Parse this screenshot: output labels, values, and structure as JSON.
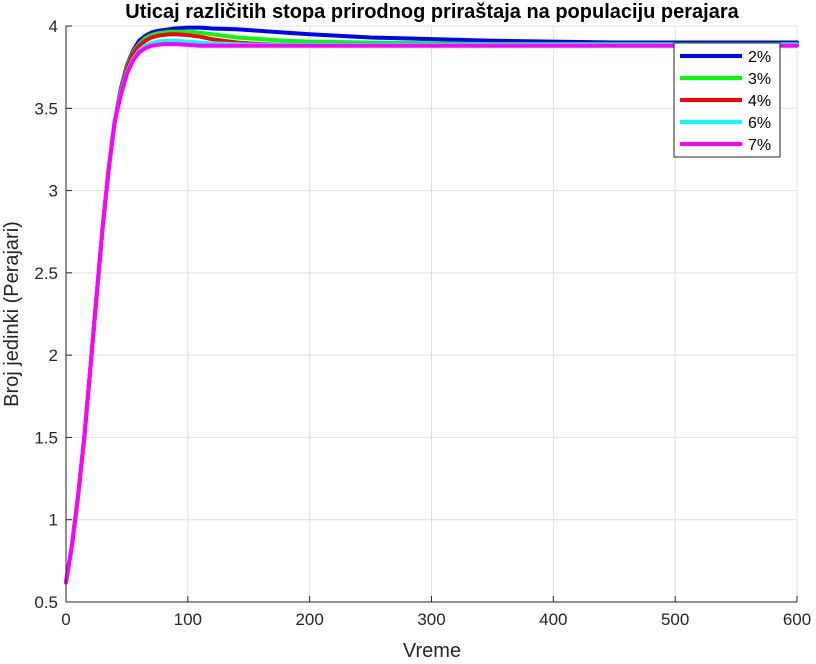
{
  "chart_data": {
    "type": "line",
    "title": "Uticaj različitih stopa prirodnog priraštaja na populaciju perajara",
    "xlabel": "Vreme",
    "ylabel": "Broj jedinki (Perajari)",
    "xlim": [
      0,
      600
    ],
    "ylim": [
      0.5,
      4
    ],
    "xticks": [
      0,
      100,
      200,
      300,
      400,
      500,
      600
    ],
    "xtick_labels": [
      "0",
      "100",
      "200",
      "300",
      "400",
      "500",
      "600"
    ],
    "yticks": [
      0.5,
      1,
      1.5,
      2,
      2.5,
      3,
      3.5,
      4
    ],
    "ytick_labels": [
      "0.5",
      "1",
      "1.5",
      "2",
      "2.5",
      "3",
      "3.5",
      "4"
    ],
    "grid": true,
    "legend_position": "top-right",
    "series": [
      {
        "name": "2%",
        "color": "#0000ff",
        "x": [
          0,
          5,
          10,
          15,
          20,
          25,
          30,
          35,
          40,
          45,
          50,
          55,
          60,
          65,
          70,
          75,
          80,
          85,
          90,
          100,
          110,
          120,
          140,
          160,
          180,
          200,
          250,
          300,
          350,
          400,
          450,
          500,
          550,
          600
        ],
        "y": [
          0.62,
          0.85,
          1.15,
          1.5,
          1.92,
          2.35,
          2.77,
          3.13,
          3.42,
          3.62,
          3.76,
          3.85,
          3.91,
          3.94,
          3.96,
          3.97,
          3.975,
          3.98,
          3.985,
          3.99,
          3.99,
          3.985,
          3.98,
          3.97,
          3.96,
          3.95,
          3.93,
          3.92,
          3.91,
          3.905,
          3.9,
          3.9,
          3.9,
          3.9
        ]
      },
      {
        "name": "3%",
        "color": "#00ff00",
        "x": [
          0,
          5,
          10,
          15,
          20,
          25,
          30,
          35,
          40,
          45,
          50,
          55,
          60,
          65,
          70,
          75,
          80,
          85,
          90,
          100,
          110,
          120,
          140,
          160,
          180,
          200,
          250,
          300,
          350,
          400,
          450,
          500,
          550,
          600
        ],
        "y": [
          0.62,
          0.85,
          1.15,
          1.5,
          1.92,
          2.35,
          2.77,
          3.13,
          3.42,
          3.61,
          3.75,
          3.84,
          3.89,
          3.925,
          3.945,
          3.955,
          3.96,
          3.965,
          3.965,
          3.965,
          3.96,
          3.95,
          3.93,
          3.92,
          3.91,
          3.905,
          3.9,
          3.895,
          3.89,
          3.89,
          3.89,
          3.89,
          3.89,
          3.89
        ]
      },
      {
        "name": "4%",
        "color": "#ff0000",
        "x": [
          0,
          5,
          10,
          15,
          20,
          25,
          30,
          35,
          40,
          45,
          50,
          55,
          60,
          65,
          70,
          75,
          80,
          85,
          90,
          100,
          110,
          120,
          140,
          160,
          180,
          200,
          250,
          300,
          350,
          400,
          450,
          500,
          550,
          600
        ],
        "y": [
          0.62,
          0.85,
          1.15,
          1.5,
          1.92,
          2.35,
          2.77,
          3.13,
          3.42,
          3.6,
          3.74,
          3.83,
          3.88,
          3.91,
          3.93,
          3.94,
          3.945,
          3.95,
          3.95,
          3.945,
          3.935,
          3.92,
          3.9,
          3.89,
          3.885,
          3.885,
          3.885,
          3.885,
          3.885,
          3.885,
          3.885,
          3.885,
          3.885,
          3.885
        ]
      },
      {
        "name": "6%",
        "color": "#00ffff",
        "x": [
          0,
          5,
          10,
          15,
          20,
          25,
          30,
          35,
          40,
          45,
          50,
          55,
          60,
          65,
          70,
          75,
          80,
          85,
          90,
          100,
          110,
          120,
          140,
          160,
          180,
          200,
          250,
          300,
          350,
          400,
          450,
          500,
          550,
          600
        ],
        "y": [
          0.62,
          0.85,
          1.15,
          1.5,
          1.92,
          2.35,
          2.77,
          3.13,
          3.42,
          3.59,
          3.72,
          3.8,
          3.85,
          3.88,
          3.895,
          3.905,
          3.91,
          3.91,
          3.91,
          3.905,
          3.9,
          3.895,
          3.89,
          3.885,
          3.885,
          3.885,
          3.885,
          3.885,
          3.885,
          3.885,
          3.885,
          3.885,
          3.885,
          3.885
        ]
      },
      {
        "name": "7%",
        "color": "#ff00ff",
        "x": [
          0,
          5,
          10,
          15,
          20,
          25,
          30,
          35,
          40,
          45,
          50,
          55,
          60,
          65,
          70,
          75,
          80,
          85,
          90,
          100,
          110,
          120,
          140,
          160,
          180,
          200,
          250,
          300,
          350,
          400,
          450,
          500,
          550,
          600
        ],
        "y": [
          0.62,
          0.85,
          1.15,
          1.5,
          1.92,
          2.35,
          2.77,
          3.13,
          3.42,
          3.58,
          3.71,
          3.79,
          3.84,
          3.865,
          3.88,
          3.885,
          3.89,
          3.89,
          3.89,
          3.885,
          3.88,
          3.88,
          3.88,
          3.88,
          3.88,
          3.88,
          3.88,
          3.88,
          3.88,
          3.88,
          3.88,
          3.88,
          3.88,
          3.88
        ]
      }
    ]
  }
}
